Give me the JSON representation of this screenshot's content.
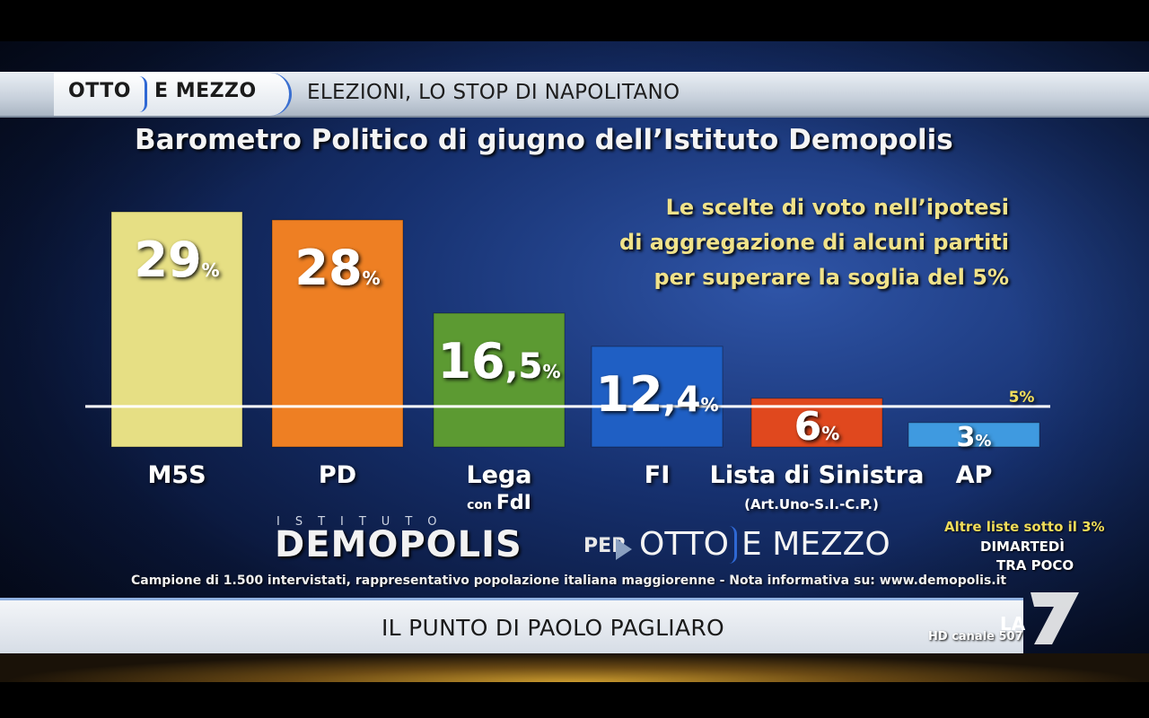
{
  "program": {
    "logo_left": "OTTO",
    "logo_right": "E MEZZO",
    "headline": "ELEZIONI, LO STOP DI NAPOLITANO"
  },
  "chart_data": {
    "type": "bar",
    "title": "Barometro Politico di giugno dell’Istituto Demopolis",
    "subtitle_lines": [
      "Le scelte di voto nell’ipotesi",
      "di aggregazione di alcuni partiti",
      "per superare la soglia del 5%"
    ],
    "categories": [
      "M5S",
      "PD",
      "Lega",
      "FI",
      "Lista di Sinistra",
      "AP"
    ],
    "category_sublabels": [
      "",
      "",
      "con FdI",
      "",
      "(Art.Uno-S.I.-C.P.)",
      ""
    ],
    "values": [
      29,
      28,
      16.5,
      12.4,
      6,
      3
    ],
    "value_labels": [
      {
        "int": "29",
        "dec": "",
        "unit": "%"
      },
      {
        "int": "28",
        "dec": "",
        "unit": "%"
      },
      {
        "int": "16",
        "dec": ",5",
        "unit": "%"
      },
      {
        "int": "12",
        "dec": ",4",
        "unit": "%"
      },
      {
        "int": "6",
        "dec": "",
        "unit": "%"
      },
      {
        "int": "3",
        "dec": "",
        "unit": "%"
      }
    ],
    "colors": [
      "#e6df84",
      "#ee7f23",
      "#5c9a32",
      "#1f5fc4",
      "#e0481e",
      "#3f9ae0"
    ],
    "threshold": {
      "value": 5,
      "label": "5%"
    },
    "ylim": [
      0,
      29
    ]
  },
  "other_lists": "Altre liste sotto il 3%",
  "branding": {
    "istituto": "ISTITUTO",
    "demopolis": "DEMOPOLIS",
    "per": "PER",
    "otto": "OTTO",
    "mezzo": "E MEZZO"
  },
  "source_note": "Campione di 1.500 intervistati, rappresentativo popolazione italiana maggiorenne - Nota informativa su: www.demopolis.it",
  "lower_third": "IL PUNTO DI PAOLO PAGLIARO",
  "channel": {
    "promo_line1": "DIMARTEDÌ",
    "promo_line2": "TRA POCO",
    "logo_text": "LA",
    "logo_number": "7",
    "hd": "HD canale 507"
  }
}
